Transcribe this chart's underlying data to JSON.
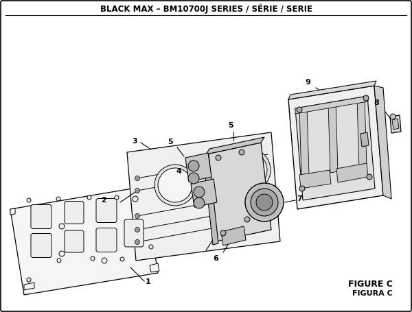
{
  "title": "BLACK MAX – BM10700J SERIES / SÉRIE / SERIE",
  "figure_label": "FIGURE C",
  "figura_label": "FIGURA C",
  "bg_color": "#ffffff",
  "lc": "#000000",
  "tc": "#000000",
  "title_fontsize": 8.5,
  "label_fontsize": 8
}
